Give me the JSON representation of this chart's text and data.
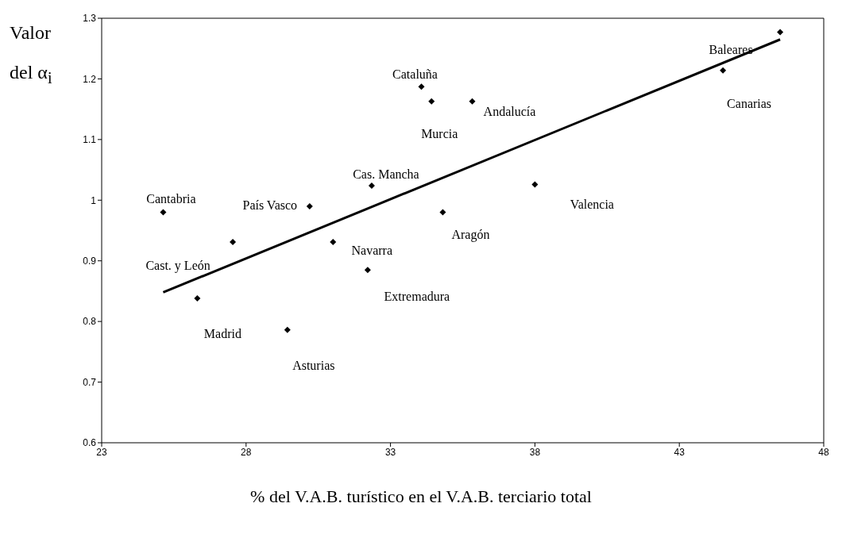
{
  "chart_data": {
    "type": "scatter",
    "ylabel": "Valor del α$_{i}$",
    "xlabel": "% del V.A.B. turístico en el V.A.B. terciario total",
    "xlim": [
      23,
      48
    ],
    "xticks": [
      23,
      28,
      33,
      38,
      43,
      48
    ],
    "ylim": [
      0.6,
      1.3
    ],
    "yticks": [
      0.6,
      0.7,
      0.8,
      0.9,
      1,
      1.1,
      1.2,
      1.3
    ],
    "grid": false,
    "marker": "diamond",
    "series": [
      {
        "type": "scatter",
        "color": "#000000",
        "x": [
          25.13,
          27.54,
          26.31,
          29.43,
          30.2,
          31.01,
          32.21,
          32.35,
          34.81,
          38.0,
          34.07,
          34.42,
          35.83,
          46.49,
          44.51
        ],
        "values": [
          0.98,
          0.931,
          0.838,
          0.786,
          0.99,
          0.931,
          0.885,
          1.024,
          0.98,
          1.026,
          1.187,
          1.163,
          1.163,
          1.277,
          1.214
        ]
      },
      {
        "type": "line",
        "color": "#000000",
        "x": [
          25.13,
          46.49
        ],
        "values": [
          0.848,
          1.265
        ],
        "marker": "none"
      }
    ],
    "annotations": [
      {
        "text": "Cantabria",
        "x": 25.13,
        "y": 0.98
      },
      {
        "text": "Cast. y León",
        "x": 27.54,
        "y": 0.931
      },
      {
        "text": "Madrid",
        "x": 26.31,
        "y": 0.838
      },
      {
        "text": "Asturias",
        "x": 29.43,
        "y": 0.786
      },
      {
        "text": "País Vasco",
        "x": 30.2,
        "y": 0.99
      },
      {
        "text": "Navarra",
        "x": 31.01,
        "y": 0.931
      },
      {
        "text": "Extremadura",
        "x": 32.21,
        "y": 0.885
      },
      {
        "text": "Cas. Mancha",
        "x": 32.35,
        "y": 1.024
      },
      {
        "text": "Aragón",
        "x": 34.81,
        "y": 0.98
      },
      {
        "text": "Valencia",
        "x": 38.0,
        "y": 1.026
      },
      {
        "text": "Cataluña",
        "x": 34.07,
        "y": 1.187
      },
      {
        "text": "Murcia",
        "x": 34.42,
        "y": 1.163
      },
      {
        "text": "Andalucía",
        "x": 35.83,
        "y": 1.163
      },
      {
        "text": "Baleares",
        "x": 46.49,
        "y": 1.277
      },
      {
        "text": "Canarias",
        "x": 44.51,
        "y": 1.214
      }
    ]
  }
}
